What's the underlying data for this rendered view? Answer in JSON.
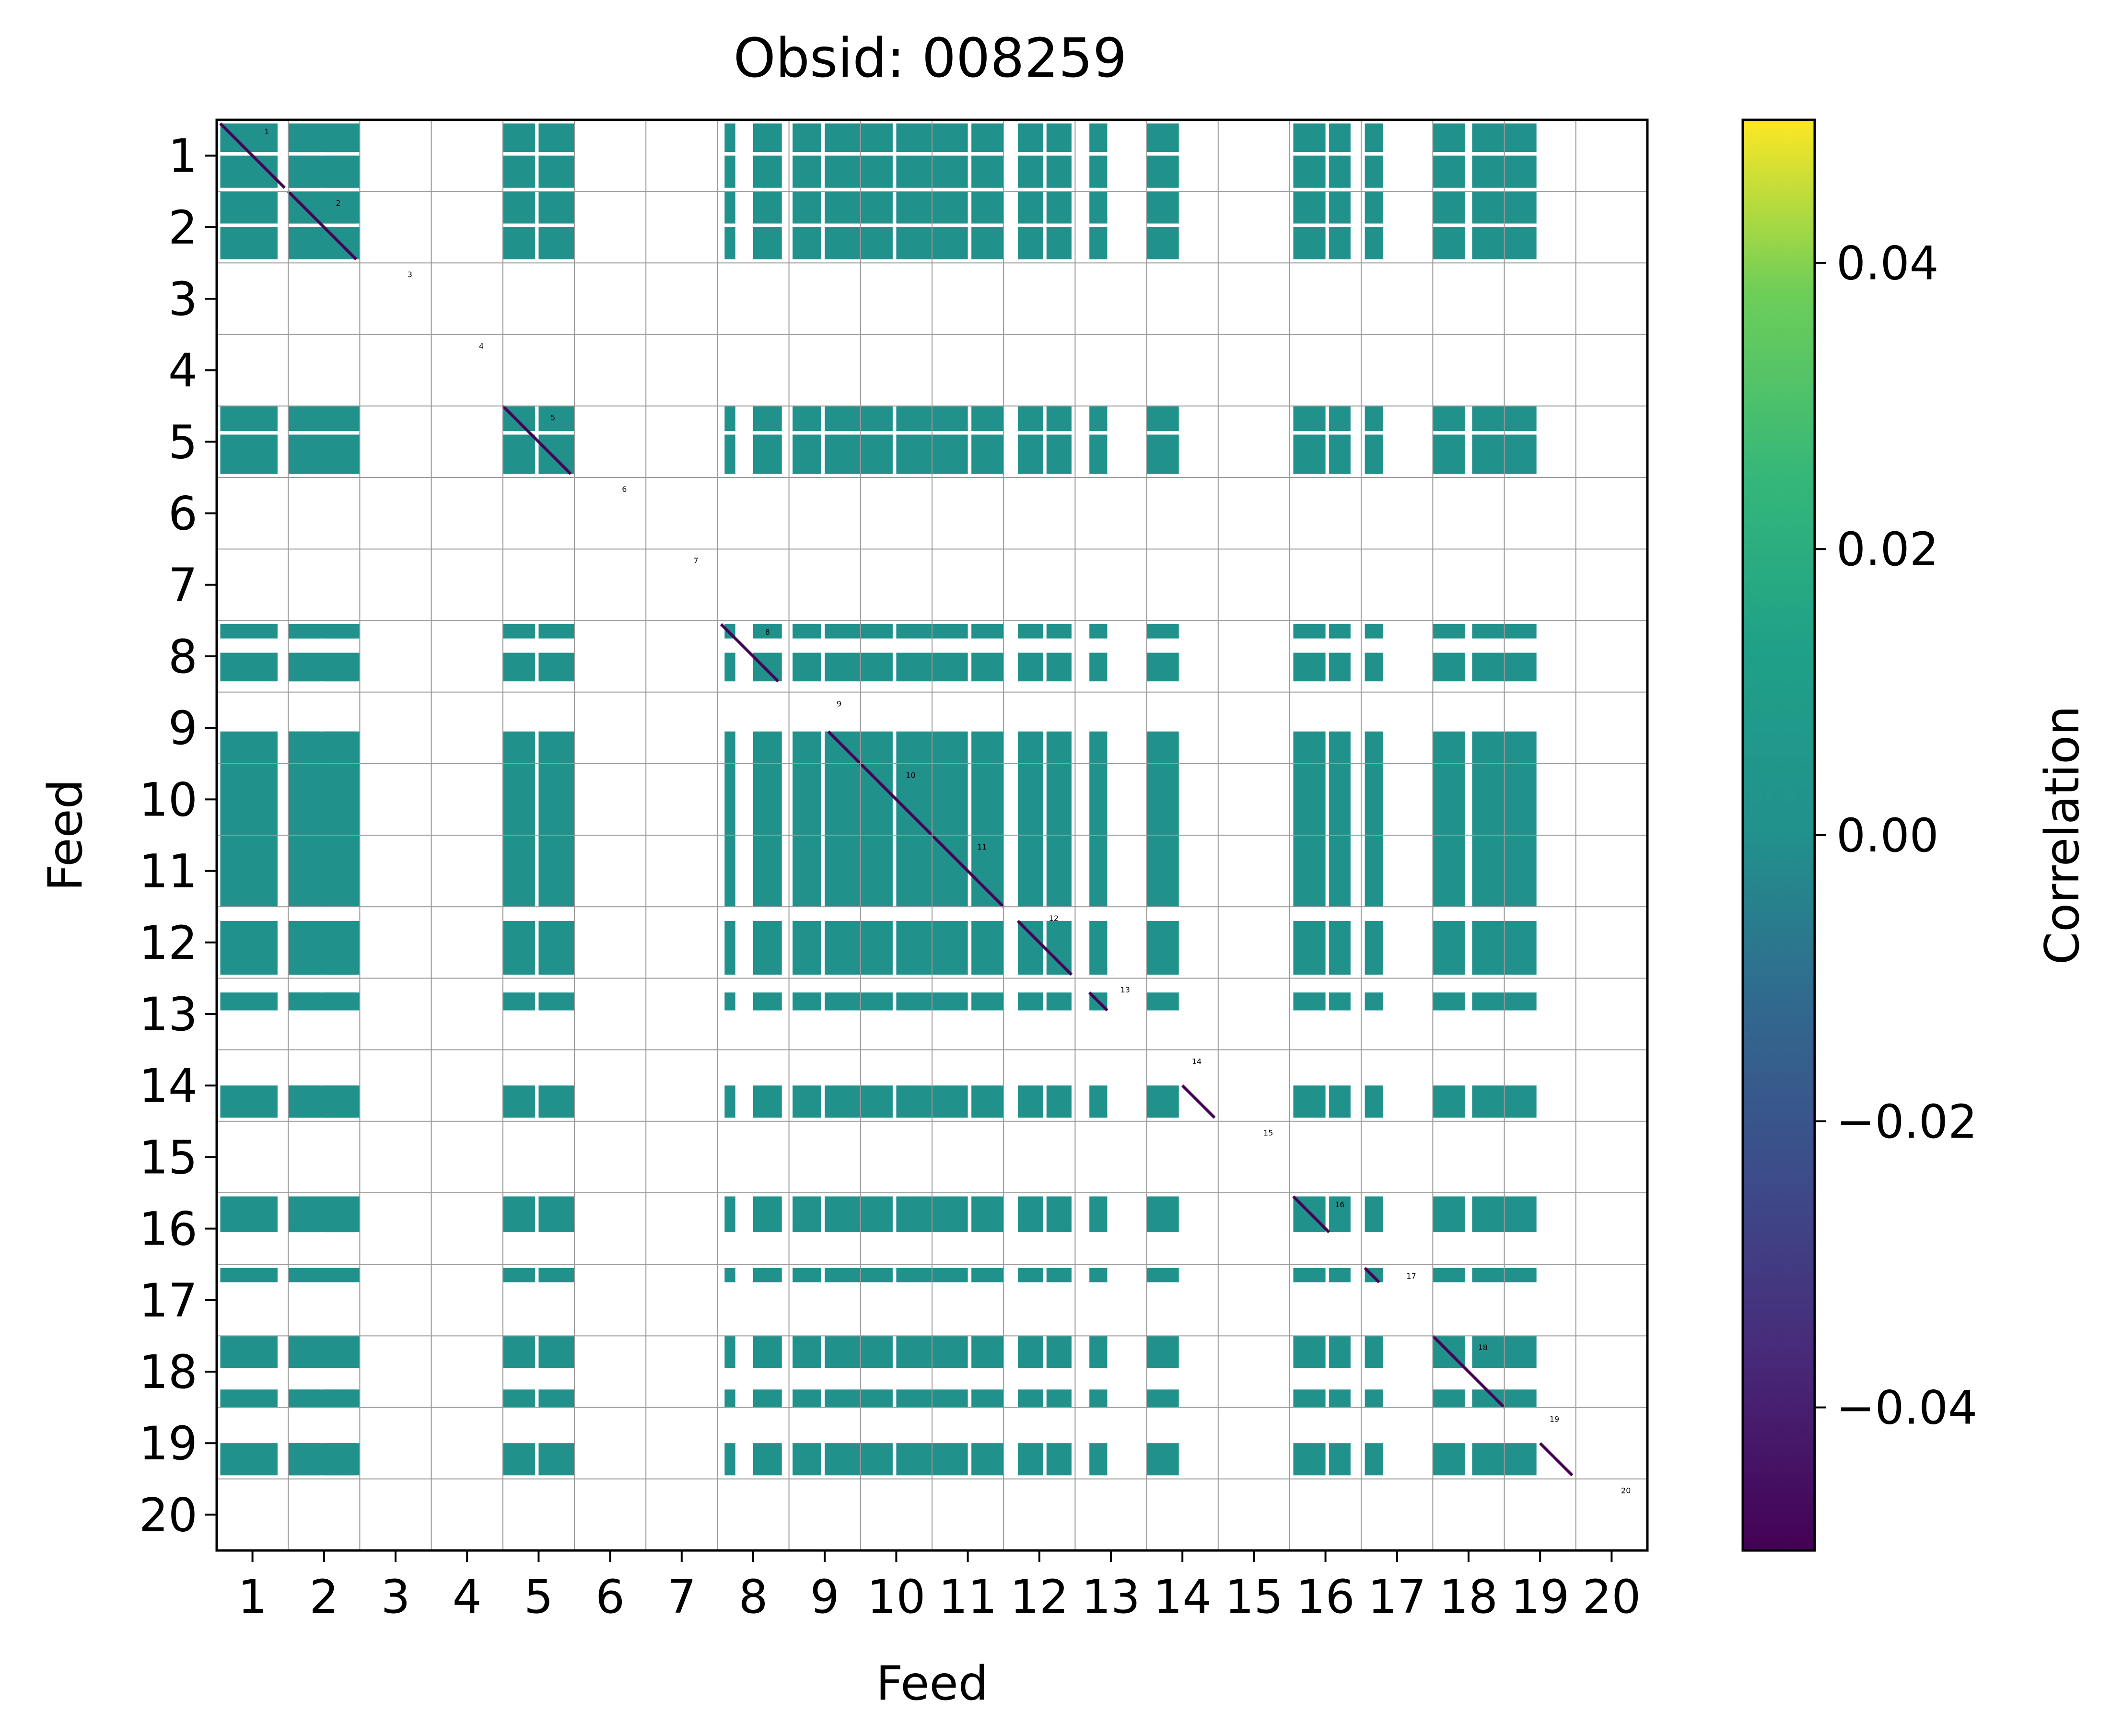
{
  "chart_data": {
    "type": "heatmap",
    "title": "Obsid: 008259",
    "xlabel": "Feed",
    "ylabel": "Feed",
    "feeds": [
      1,
      2,
      3,
      4,
      5,
      6,
      7,
      8,
      9,
      10,
      11,
      12,
      13,
      14,
      15,
      16,
      17,
      18,
      19,
      20
    ],
    "x_ticks": [
      "1",
      "2",
      "3",
      "4",
      "5",
      "6",
      "7",
      "8",
      "9",
      "10",
      "11",
      "12",
      "13",
      "14",
      "15",
      "16",
      "17",
      "18",
      "19",
      "20"
    ],
    "y_ticks": [
      "1",
      "2",
      "3",
      "4",
      "5",
      "6",
      "7",
      "8",
      "9",
      "10",
      "11",
      "12",
      "13",
      "14",
      "15",
      "16",
      "17",
      "18",
      "19",
      "20"
    ],
    "active_feeds": [
      1,
      2,
      5,
      8,
      9,
      10,
      11,
      12,
      13,
      14,
      16,
      17,
      18,
      19
    ],
    "inactive_feeds": [
      3,
      4,
      6,
      7,
      15,
      20
    ],
    "feed_band_fill": {
      "1": {
        "cols": [
          [
            0.05,
            0.85
          ],
          [
            1.0,
            1.95
          ]
        ],
        "rows": [
          [
            0.05,
            0.45
          ],
          [
            0.5,
            0.95
          ]
        ]
      },
      "2": {
        "cols": [
          [
            0.0,
            0.45
          ],
          [
            0.5,
            1.0
          ]
        ],
        "rows": [
          [
            0.0,
            0.45
          ],
          [
            0.5,
            0.95
          ]
        ]
      },
      "5": {
        "cols": [
          [
            0.0,
            0.45
          ],
          [
            0.5,
            1.0
          ]
        ],
        "rows": [
          [
            0.0,
            0.35
          ],
          [
            0.4,
            0.95
          ]
        ]
      },
      "8": {
        "cols": [
          [
            0.1,
            0.25
          ],
          [
            0.5,
            0.9
          ]
        ],
        "rows": [
          [
            0.05,
            0.25
          ],
          [
            0.45,
            0.85
          ]
        ]
      },
      "9": {
        "cols": [
          [
            0.05,
            0.45
          ],
          [
            0.5,
            1.0
          ]
        ],
        "rows": [
          [
            0.55,
            1.0
          ]
        ]
      },
      "10": {
        "cols": [
          [
            0.0,
            0.45
          ],
          [
            0.5,
            1.0
          ]
        ],
        "rows": [
          [
            0.0,
            1.0
          ]
        ]
      },
      "11": {
        "cols": [
          [
            0.0,
            0.5
          ],
          [
            0.55,
            1.0
          ]
        ],
        "rows": [
          [
            0.0,
            1.0
          ]
        ]
      },
      "12": {
        "cols": [
          [
            0.2,
            0.55
          ],
          [
            0.6,
            0.95
          ]
        ],
        "rows": [
          [
            0.2,
            0.95
          ]
        ]
      },
      "13": {
        "cols": [
          [
            0.2,
            0.45
          ]
        ],
        "rows": [
          [
            0.2,
            0.45
          ]
        ]
      },
      "14": {
        "cols": [
          [
            0.0,
            0.45
          ]
        ],
        "rows": [
          [
            0.5,
            0.95
          ]
        ]
      },
      "16": {
        "cols": [
          [
            0.05,
            0.5
          ],
          [
            0.55,
            0.85
          ]
        ],
        "rows": [
          [
            0.05,
            0.55
          ]
        ]
      },
      "17": {
        "cols": [
          [
            0.05,
            0.3
          ]
        ],
        "rows": [
          [
            0.05,
            0.25
          ]
        ]
      },
      "18": {
        "cols": [
          [
            0.0,
            0.45
          ],
          [
            0.55,
            1.0
          ]
        ],
        "rows": [
          [
            0.0,
            0.45
          ],
          [
            0.75,
            1.0
          ]
        ]
      },
      "19": {
        "cols": [
          [
            0.0,
            0.45
          ]
        ],
        "rows": [
          [
            0.5,
            0.95
          ]
        ]
      }
    },
    "off_diagonal_correlation": 0.0,
    "diagonal_correlation": -0.05,
    "colorbar": {
      "label": "Correlation",
      "colormap": "viridis",
      "range": [
        -0.05,
        0.05
      ],
      "ticks": [
        -0.04,
        -0.02,
        0.0,
        0.02,
        0.04
      ],
      "tick_labels": [
        "−0.04",
        "−0.02",
        "0.00",
        "0.02",
        "0.04"
      ]
    },
    "grid": true
  }
}
